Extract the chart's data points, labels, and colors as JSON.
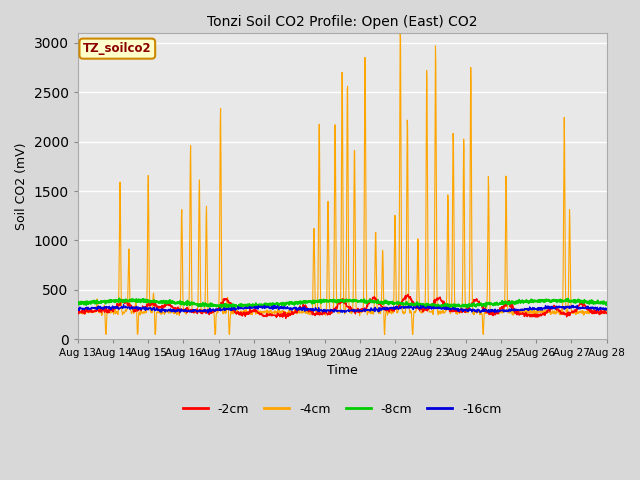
{
  "title": "Tonzi Soil CO2 Profile: Open (East) CO2",
  "xlabel": "Time",
  "ylabel": "Soil CO2 (mV)",
  "ylim": [
    0,
    3100
  ],
  "yticks": [
    0,
    500,
    1000,
    1500,
    2000,
    2500,
    3000
  ],
  "xtick_labels": [
    "Aug 13",
    "Aug 14",
    "Aug 15",
    "Aug 16",
    "Aug 17",
    "Aug 18",
    "Aug 19",
    "Aug 20",
    "Aug 21",
    "Aug 22",
    "Aug 23",
    "Aug 24",
    "Aug 25",
    "Aug 26",
    "Aug 27",
    "Aug 28"
  ],
  "legend_label": "TZ_soilco2",
  "legend_entries": [
    "-2cm",
    "-4cm",
    "-8cm",
    "-16cm"
  ],
  "legend_colors": [
    "#ff0000",
    "#ffa500",
    "#00cc00",
    "#0000dd"
  ],
  "bg_color": "#d8d8d8",
  "plot_bg_color": "#e8e8e8",
  "grid_color": "#ffffff",
  "title_fontsize": 10,
  "axis_fontsize": 9,
  "tick_fontsize": 7.5,
  "orange_spikes": [
    [
      13.55,
      120
    ],
    [
      13.75,
      80
    ],
    [
      14.2,
      1300
    ],
    [
      14.45,
      630
    ],
    [
      14.65,
      120
    ],
    [
      15.0,
      1380
    ],
    [
      15.15,
      200
    ],
    [
      15.95,
      1050
    ],
    [
      16.2,
      1700
    ],
    [
      16.45,
      1350
    ],
    [
      16.65,
      1050
    ],
    [
      17.05,
      2090
    ],
    [
      17.25,
      160
    ],
    [
      19.7,
      880
    ],
    [
      19.85,
      1980
    ],
    [
      20.1,
      1170
    ],
    [
      20.3,
      1970
    ],
    [
      20.5,
      2520
    ],
    [
      20.65,
      2370
    ],
    [
      20.85,
      1710
    ],
    [
      21.15,
      2660
    ],
    [
      21.45,
      820
    ],
    [
      21.65,
      640
    ],
    [
      22.0,
      1010
    ],
    [
      22.15,
      2950
    ],
    [
      22.35,
      1990
    ],
    [
      22.65,
      760
    ],
    [
      22.9,
      2490
    ],
    [
      23.15,
      2740
    ],
    [
      23.5,
      1230
    ],
    [
      23.65,
      1840
    ],
    [
      23.95,
      1770
    ],
    [
      24.15,
      2520
    ],
    [
      24.65,
      1380
    ],
    [
      25.15,
      1380
    ],
    [
      26.8,
      1980
    ],
    [
      26.95,
      1050
    ]
  ]
}
